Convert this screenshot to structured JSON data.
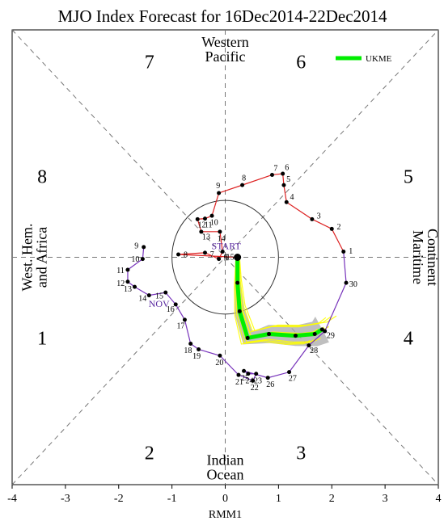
{
  "chart_data": {
    "type": "line",
    "title": "MJO Index Forecast for 16Dec2014-22Dec2014",
    "xlabel": "RMM1",
    "xlim": [
      -4,
      4
    ],
    "ylim": [
      -4,
      4
    ],
    "x_ticks": [
      "-4",
      "-3",
      "-2",
      "-1",
      "0",
      "1",
      "2",
      "3",
      "4"
    ],
    "phases": [
      {
        "number": "1",
        "angle_deg": 202.5
      },
      {
        "number": "2",
        "angle_deg": 247.5
      },
      {
        "number": "3",
        "angle_deg": 292.5
      },
      {
        "number": "4",
        "angle_deg": 337.5
      },
      {
        "number": "5",
        "angle_deg": 22.5
      },
      {
        "number": "6",
        "angle_deg": 67.5
      },
      {
        "number": "7",
        "angle_deg": 112.5
      },
      {
        "number": "8",
        "angle_deg": 157.5
      }
    ],
    "regions": {
      "top": [
        "Western",
        "Pacific"
      ],
      "bottom": [
        "Indian",
        "Ocean"
      ],
      "left": [
        "West. Hem.",
        "and Africa"
      ],
      "right": [
        "Maritime",
        "Continent"
      ]
    },
    "unit_circle_radius": 1,
    "colors": {
      "observed_a": "#dd2222",
      "observed_b": "#7733bb",
      "ensemble": "#ffff00",
      "ensemble_spread": "#aaaaaa",
      "forecast": "#00ee00"
    },
    "series": [
      {
        "month": "NOV",
        "points": [
          {
            "label": "9",
            "x": -1.53,
            "y": 0.18
          },
          {
            "label": "10",
            "x": -1.55,
            "y": -0.03
          },
          {
            "label": "11",
            "x": -1.83,
            "y": -0.22
          },
          {
            "label": "12",
            "x": -1.83,
            "y": -0.43
          },
          {
            "label": "13",
            "x": -1.7,
            "y": -0.52
          },
          {
            "label": "14",
            "x": -1.43,
            "y": -0.67
          },
          {
            "label": "15",
            "x": -1.12,
            "y": -0.62
          },
          {
            "label": "16",
            "x": -0.93,
            "y": -0.83
          },
          {
            "label": "17",
            "x": -0.76,
            "y": -1.1
          },
          {
            "label": "18",
            "x": -0.65,
            "y": -1.52
          },
          {
            "label": "19",
            "x": -0.5,
            "y": -1.62
          },
          {
            "label": "20",
            "x": -0.1,
            "y": -1.73
          },
          {
            "label": "21",
            "x": 0.25,
            "y": -2.07
          },
          {
            "label": "22",
            "x": 0.52,
            "y": -2.17
          },
          {
            "label": "23",
            "x": 0.58,
            "y": -2.05
          },
          {
            "label": "24",
            "x": 0.43,
            "y": -2.05
          },
          {
            "label": "25",
            "x": 0.35,
            "y": -2.0
          },
          {
            "label": "26",
            "x": 0.8,
            "y": -2.12
          },
          {
            "label": "27",
            "x": 1.2,
            "y": -2.02
          },
          {
            "label": "28",
            "x": 1.57,
            "y": -1.55
          },
          {
            "label": "29",
            "x": 1.87,
            "y": -1.3
          },
          {
            "label": "30",
            "x": 2.27,
            "y": -0.45
          }
        ]
      },
      {
        "month": "",
        "points": [
          {
            "label": "1",
            "x": 2.22,
            "y": 0.1
          },
          {
            "label": "2",
            "x": 2.0,
            "y": 0.5
          },
          {
            "label": "3",
            "x": 1.63,
            "y": 0.67
          },
          {
            "label": "4",
            "x": 1.15,
            "y": 0.97
          },
          {
            "label": "5",
            "x": 1.1,
            "y": 1.27
          },
          {
            "label": "6",
            "x": 1.08,
            "y": 1.47
          },
          {
            "label": "7",
            "x": 0.88,
            "y": 1.45
          },
          {
            "label": "8",
            "x": 0.32,
            "y": 1.27
          },
          {
            "label": "9",
            "x": -0.12,
            "y": 1.13
          },
          {
            "label": "10",
            "x": -0.25,
            "y": 0.73
          },
          {
            "label": "11",
            "x": -0.38,
            "y": 0.68
          },
          {
            "label": "12",
            "x": -0.52,
            "y": 0.67
          },
          {
            "label": "13",
            "x": -0.45,
            "y": 0.45
          },
          {
            "label": "14",
            "x": -0.1,
            "y": 0.45
          },
          {
            "label": "5",
            "x": -0.05,
            "y": 0.1
          },
          {
            "label": "6",
            "x": -0.12,
            "y": -0.03
          },
          {
            "label": "7",
            "x": -0.38,
            "y": 0.08
          },
          {
            "label": "8",
            "x": -0.88,
            "y": 0.05
          },
          {
            "label": "15",
            "x": 0.23,
            "y": 0.0
          }
        ]
      },
      {
        "name": "UKME",
        "role": "forecast",
        "points": [
          {
            "x": 0.23,
            "y": 0.0
          },
          {
            "x": 0.23,
            "y": -0.45
          },
          {
            "x": 0.27,
            "y": -0.95
          },
          {
            "x": 0.42,
            "y": -1.42
          },
          {
            "x": 0.82,
            "y": -1.35
          },
          {
            "x": 1.32,
            "y": -1.38
          },
          {
            "x": 1.68,
            "y": -1.35
          },
          {
            "x": 1.82,
            "y": -1.27
          }
        ]
      }
    ],
    "start_label": "START",
    "legend": {
      "position": "top-right",
      "entries": [
        "UKME"
      ]
    }
  }
}
